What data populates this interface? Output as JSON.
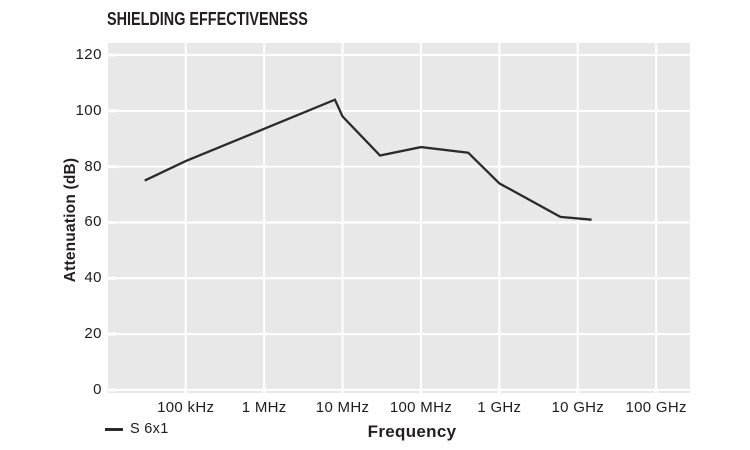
{
  "chart_data": {
    "type": "line",
    "title": "SHIELDING EFFECTIVENESS",
    "xlabel": "Frequency",
    "ylabel": "Attenuation (dB)",
    "x_scale": "log",
    "grid": true,
    "legend_position": "bottom-left",
    "plot_bg_color": "#e8e8e8",
    "grid_color": "#ffffff",
    "text_color": "#1d1d1f",
    "xlim_hz": [
      10200,
      270000000000
    ],
    "ylim": [
      -1.1,
      124.3
    ],
    "y_ticks": [
      0,
      20,
      40,
      60,
      80,
      100,
      120
    ],
    "x_ticks": [
      {
        "hz": 100000,
        "label": "100 kHz"
      },
      {
        "hz": 1000000,
        "label": "1 MHz"
      },
      {
        "hz": 10000000,
        "label": "10 MHz"
      },
      {
        "hz": 100000000,
        "label": "100 MHz"
      },
      {
        "hz": 1000000000,
        "label": "1 GHz"
      },
      {
        "hz": 10000000000,
        "label": "10 GHz"
      },
      {
        "hz": 100000000000,
        "label": "100 GHz"
      }
    ],
    "series": [
      {
        "name": "S 6x1",
        "color": "#2b2b2b",
        "points_hz_db": [
          [
            30000,
            75
          ],
          [
            100000,
            82
          ],
          [
            8000000,
            104
          ],
          [
            10000000,
            98
          ],
          [
            30000000,
            84
          ],
          [
            100000000,
            87
          ],
          [
            400000000,
            85
          ],
          [
            1000000000,
            74
          ],
          [
            6000000000,
            62
          ],
          [
            15000000000,
            61
          ]
        ]
      }
    ]
  }
}
